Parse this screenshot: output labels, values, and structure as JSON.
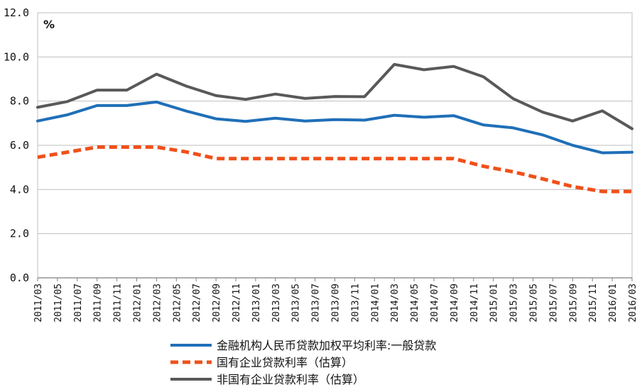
{
  "chart_data": {
    "type": "line",
    "unit_label": "%",
    "ylim": [
      0,
      12
    ],
    "y_ticks": [
      "0.0",
      "2.0",
      "4.0",
      "6.0",
      "8.0",
      "10.0",
      "12.0"
    ],
    "grid": "horizontal",
    "legend_placement": "bottom",
    "categories": [
      "2011/03",
      "2011/05",
      "2011/07",
      "2011/09",
      "2011/11",
      "2012/01",
      "2012/03",
      "2012/05",
      "2012/07",
      "2012/09",
      "2012/11",
      "2013/01",
      "2013/03",
      "2013/05",
      "2013/07",
      "2013/09",
      "2013/11",
      "2014/01",
      "2014/03",
      "2014/05",
      "2014/07",
      "2014/09",
      "2014/11",
      "2015/01",
      "2015/03",
      "2015/05",
      "2015/07",
      "2015/09",
      "2015/11",
      "2016/01",
      "2016/03"
    ],
    "series": [
      {
        "name": "金融机构人民币贷款加权平均利率:一般贷款",
        "color": "#1f6fb8",
        "style": "solid",
        "x": [
          "2011/03",
          "2011/06",
          "2011/09",
          "2011/12",
          "2012/03",
          "2012/06",
          "2012/09",
          "2012/12",
          "2013/03",
          "2013/06",
          "2013/09",
          "2013/12",
          "2014/03",
          "2014/06",
          "2014/09",
          "2014/12",
          "2015/03",
          "2015/06",
          "2015/09",
          "2015/12",
          "2016/03"
        ],
        "values": [
          7.1,
          7.38,
          7.8,
          7.8,
          7.96,
          7.55,
          7.2,
          7.08,
          7.23,
          7.1,
          7.16,
          7.14,
          7.36,
          7.27,
          7.34,
          6.92,
          6.79,
          6.47,
          6.0,
          5.66,
          5.69
        ]
      },
      {
        "name": "国有企业贷款利率（估算）",
        "color": "#f0501a",
        "style": "dashed",
        "x": [
          "2011/03",
          "2011/06",
          "2011/09",
          "2011/12",
          "2012/03",
          "2012/06",
          "2012/09",
          "2012/12",
          "2013/03",
          "2013/06",
          "2013/09",
          "2013/12",
          "2014/03",
          "2014/06",
          "2014/09",
          "2014/12",
          "2015/03",
          "2015/06",
          "2015/09",
          "2015/12",
          "2016/03"
        ],
        "values": [
          5.46,
          5.69,
          5.92,
          5.92,
          5.92,
          5.7,
          5.4,
          5.4,
          5.4,
          5.4,
          5.4,
          5.4,
          5.4,
          5.4,
          5.4,
          5.05,
          4.8,
          4.48,
          4.13,
          3.91,
          3.91
        ]
      },
      {
        "name": "非国有企业贷款利率（估算）",
        "color": "#595959",
        "style": "solid",
        "x": [
          "2011/03",
          "2011/06",
          "2011/09",
          "2011/12",
          "2012/03",
          "2012/06",
          "2012/09",
          "2012/12",
          "2013/03",
          "2013/06",
          "2013/09",
          "2013/12",
          "2014/03",
          "2014/06",
          "2014/09",
          "2014/12",
          "2015/03",
          "2015/06",
          "2015/09",
          "2015/12",
          "2016/03"
        ],
        "values": [
          7.72,
          7.98,
          8.5,
          8.5,
          9.22,
          8.68,
          8.25,
          8.08,
          8.32,
          8.12,
          8.21,
          8.2,
          9.66,
          9.42,
          9.57,
          9.1,
          8.11,
          7.5,
          7.1,
          7.56,
          6.75
        ]
      }
    ]
  }
}
